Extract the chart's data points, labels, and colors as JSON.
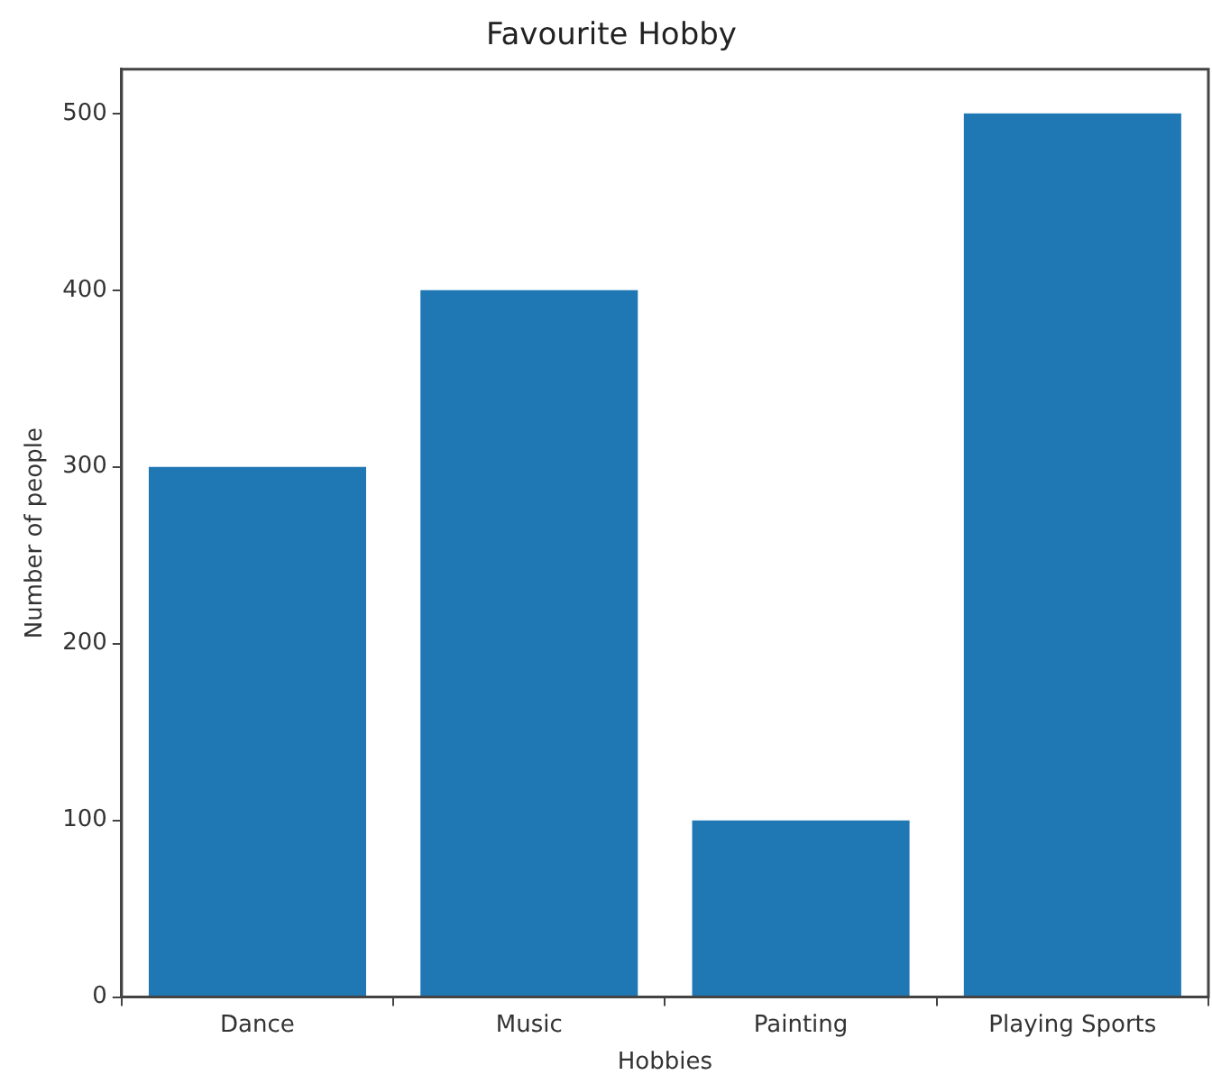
{
  "chart_data": {
    "type": "bar",
    "title": "Favourite Hobby",
    "xlabel": "Hobbies",
    "ylabel": "Number of people",
    "categories": [
      "Dance",
      "Music",
      "Painting",
      "Playing Sports"
    ],
    "values": [
      300,
      400,
      100,
      500
    ],
    "color": "#1f77b4",
    "ylim": [
      0,
      525
    ],
    "yticks": [
      0,
      100,
      200,
      300,
      400,
      500
    ],
    "grid": false,
    "legend": false
  }
}
